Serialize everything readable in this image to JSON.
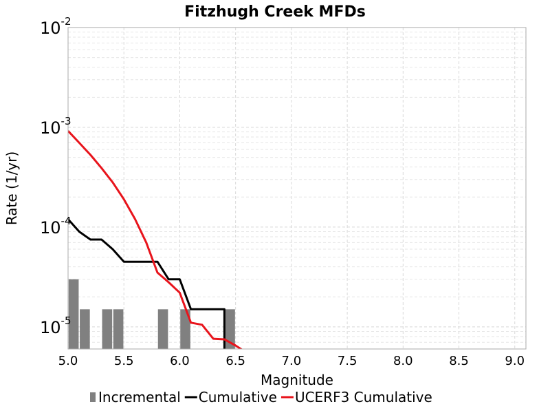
{
  "chart_data": {
    "type": "bar+line",
    "title": "Fitzhugh Creek MFDs",
    "xlabel": "Magnitude",
    "ylabel": "Rate (1/yr)",
    "xlim": [
      5.0,
      9.1
    ],
    "ylim": [
      6e-06,
      0.01
    ],
    "yscale": "log",
    "grid": true,
    "legend_position": "bottom",
    "xticks": [
      "5.0",
      "5.5",
      "6.0",
      "6.5",
      "7.0",
      "7.5",
      "8.0",
      "8.5",
      "9.0"
    ],
    "yticks": [
      {
        "base": "10",
        "exp": "-2",
        "value": 0.01
      },
      {
        "base": "10",
        "exp": "-3",
        "value": 0.001
      },
      {
        "base": "10",
        "exp": "-4",
        "value": 0.0001
      },
      {
        "base": "10",
        "exp": "-5",
        "value": 1e-05
      }
    ],
    "series": [
      {
        "name": "Incremental",
        "kind": "bar",
        "color": "#808080",
        "x": [
          5.05,
          5.15,
          5.35,
          5.45,
          5.85,
          6.05,
          6.45
        ],
        "values": [
          3e-05,
          1.5e-05,
          1.5e-05,
          1.5e-05,
          1.5e-05,
          1.5e-05,
          1.5e-05
        ]
      },
      {
        "name": "Cumulative",
        "kind": "line",
        "color": "#000000",
        "x": [
          5.0,
          5.1,
          5.2,
          5.3,
          5.4,
          5.5,
          5.6,
          5.7,
          5.8,
          5.9,
          6.0,
          6.1,
          6.2,
          6.3,
          6.4,
          6.4
        ],
        "values": [
          0.00012,
          9e-05,
          7.5e-05,
          7.5e-05,
          6e-05,
          4.5e-05,
          4.5e-05,
          4.5e-05,
          4.5e-05,
          3e-05,
          3e-05,
          1.5e-05,
          1.5e-05,
          1.5e-05,
          1.5e-05,
          6e-06
        ]
      },
      {
        "name": "UCERF3 Cumulative",
        "kind": "line",
        "color": "#e8141c",
        "x": [
          5.0,
          5.1,
          5.2,
          5.3,
          5.4,
          5.5,
          5.6,
          5.7,
          5.8,
          5.9,
          6.0,
          6.1,
          6.2,
          6.3,
          6.4,
          6.5,
          6.6
        ],
        "values": [
          0.00092,
          0.0007,
          0.00053,
          0.00039,
          0.00028,
          0.00019,
          0.00012,
          7e-05,
          3.5e-05,
          2.8e-05,
          2.2e-05,
          1.1e-05,
          1.05e-05,
          7.6e-06,
          7.5e-06,
          6.5e-06,
          5.5e-06
        ]
      }
    ]
  }
}
